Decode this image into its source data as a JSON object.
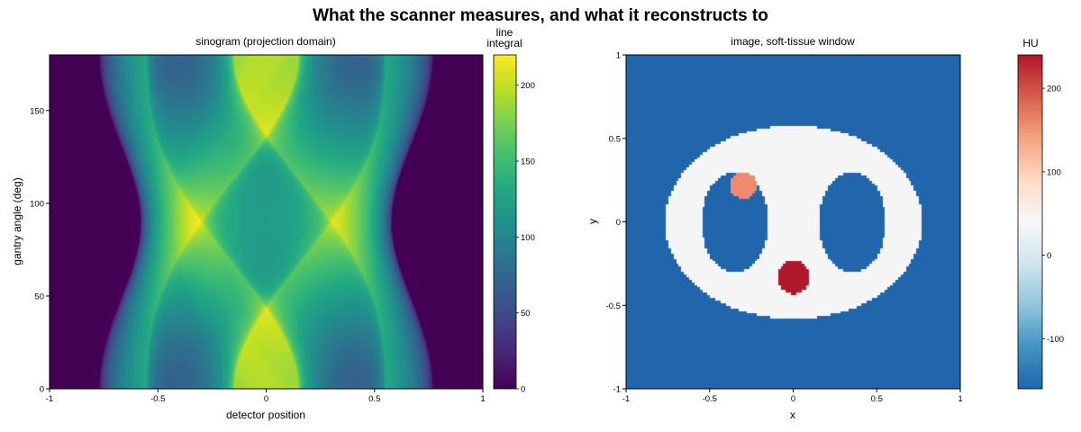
{
  "figure": {
    "title": "What the scanner measures, and what it reconstructs to"
  },
  "chart_data": [
    {
      "type": "heatmap",
      "title": "sinogram (projection domain)",
      "xlabel": "detector position",
      "ylabel": "gantry angle (deg)",
      "xlim": [
        -1,
        1
      ],
      "ylim": [
        0,
        180
      ],
      "xticks": [
        "-1",
        "-0.5",
        "0",
        "0.5",
        "1"
      ],
      "yticks": [
        "0",
        "50",
        "100",
        "150"
      ],
      "colormap": "viridis",
      "colorbar": {
        "title": "line integral",
        "title_lines": [
          "line",
          "integral"
        ],
        "range": [
          0,
          220
        ],
        "ticks": [
          "0",
          "50",
          "100",
          "150",
          "200"
        ],
        "tick_values": [
          0,
          50,
          100,
          150,
          200
        ]
      },
      "phantom": {
        "outer_ellipse": {
          "cx": 0,
          "cy": 0,
          "a": 0.77,
          "b": 0.58,
          "value_hu": 40
        },
        "left_hole": {
          "cx": -0.35,
          "cy": 0,
          "a": 0.2,
          "b": 0.3,
          "value_hu": -1000
        },
        "right_hole": {
          "cx": 0.35,
          "cy": 0,
          "a": 0.2,
          "b": 0.3,
          "value_hu": -1000
        },
        "lesion_upper": {
          "cx": -0.3,
          "cy": 0.22,
          "r": 0.08,
          "value_hu": 100
        },
        "lesion_lower": {
          "cx": 0.0,
          "cy": -0.33,
          "r": 0.1,
          "value_hu": 220
        },
        "background_hu": -1000
      },
      "peak_line_integral": 220
    },
    {
      "type": "heatmap",
      "title": "image, soft-tissue window",
      "xlabel": "x",
      "ylabel": "y",
      "xlim": [
        -1,
        1
      ],
      "ylim": [
        -1,
        1
      ],
      "xticks": [
        "-1",
        "-0.5",
        "0",
        "0.5",
        "1"
      ],
      "yticks": [
        "-1",
        "-0.5",
        "0",
        "0.5",
        "1"
      ],
      "colormap": "RdBu_r",
      "colorbar": {
        "title": "HU",
        "range": [
          -160,
          240
        ],
        "ticks": [
          "-100",
          "0",
          "100",
          "200"
        ],
        "tick_values": [
          -100,
          0,
          100,
          200
        ]
      },
      "regions": [
        {
          "name": "background",
          "color": "#2166ac"
        },
        {
          "name": "soft tissue",
          "color": "#f5f5f5"
        },
        {
          "name": "upper lesion",
          "color": "#ef8a6e"
        },
        {
          "name": "lower lesion",
          "color": "#b2182b"
        }
      ]
    }
  ]
}
